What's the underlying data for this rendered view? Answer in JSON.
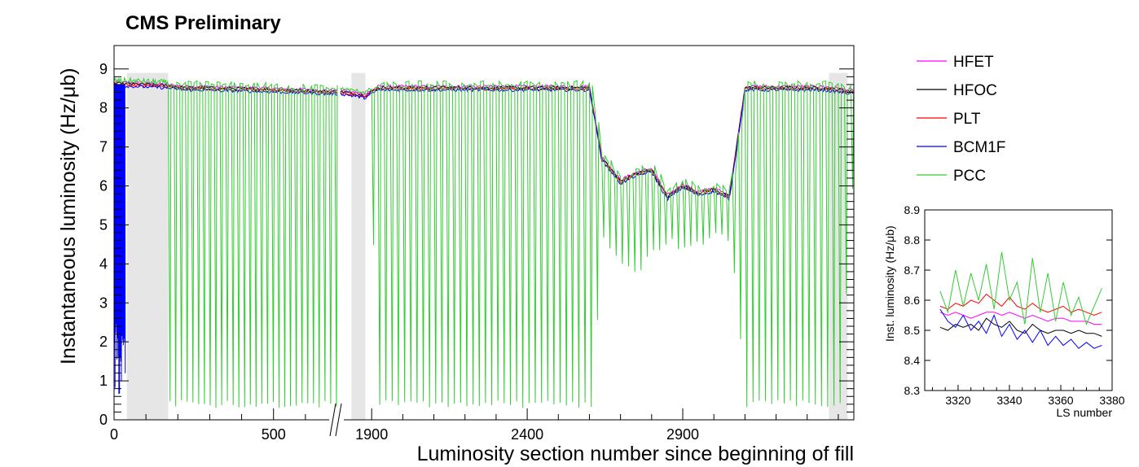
{
  "figure": {
    "header": "CMS Preliminary"
  },
  "chart_data": [
    {
      "type": "line",
      "xlabel": "Luminosity section number since beginning of fill",
      "ylabel": "Instantaneous luminosity (Hz/μb)",
      "ylim": [
        0,
        9.6
      ],
      "axis_break": "broken x-axis between 700 and 1800",
      "x_tick_labels": [
        "0",
        "500",
        "1900",
        "2400",
        "2900"
      ],
      "y_tick_labels": [
        "0",
        "1",
        "2",
        "3",
        "4",
        "5",
        "6",
        "7",
        "8",
        "9"
      ],
      "y_ticks": [
        0,
        1,
        2,
        3,
        4,
        5,
        6,
        7,
        8,
        9
      ],
      "legend_placement": "right",
      "grid": false,
      "shaded_regions_x": [
        [
          40,
          170
        ],
        [
          1835,
          1880
        ],
        [
          3370,
          3430
        ]
      ],
      "series": [
        {
          "name": "HFET",
          "color": "#ff00ff"
        },
        {
          "name": "HFOC",
          "color": "#000000"
        },
        {
          "name": "PLT",
          "color": "#ff0000"
        },
        {
          "name": "BCM1F",
          "color": "#0000ff"
        },
        {
          "name": "PCC",
          "color": "#33cc33"
        }
      ],
      "x": [
        0,
        40,
        100,
        170,
        200,
        220,
        260,
        300,
        340,
        380,
        420,
        460,
        500,
        540,
        580,
        620,
        660,
        700,
        1800,
        1840,
        1880,
        1920,
        2000,
        2100,
        2200,
        2300,
        2400,
        2500,
        2600,
        2640,
        2700,
        2750,
        2800,
        2850,
        2900,
        2950,
        3000,
        3050,
        3100,
        3150,
        3200,
        3250,
        3300,
        3350,
        3400,
        3450
      ],
      "envelope_upper": [
        8.7,
        8.7,
        8.68,
        8.65,
        8.62,
        8.6,
        8.6,
        8.6,
        8.58,
        8.58,
        8.57,
        8.56,
        8.55,
        8.54,
        8.53,
        8.52,
        8.5,
        8.5,
        8.5,
        8.45,
        8.4,
        8.6,
        8.6,
        8.6,
        8.6,
        8.6,
        8.6,
        8.6,
        8.6,
        6.8,
        6.2,
        6.4,
        6.5,
        5.8,
        6.1,
        5.9,
        6.0,
        5.8,
        8.6,
        8.6,
        8.6,
        8.6,
        8.6,
        8.6,
        8.55,
        8.5
      ],
      "envelope_lower": [
        0.5,
        0.3,
        0.3,
        0.3,
        0.3,
        0.3,
        0.3,
        0.3,
        0.3,
        0.3,
        0.3,
        0.3,
        0.3,
        0.3,
        0.3,
        0.3,
        0.3,
        0.3,
        8.3,
        8.3,
        8.3,
        0.3,
        0.3,
        0.3,
        0.3,
        0.3,
        0.3,
        0.3,
        0.3,
        4.6,
        3.9,
        3.7,
        4.2,
        4.5,
        4.3,
        4.4,
        4.6,
        4.5,
        0.3,
        0.3,
        0.3,
        0.3,
        0.3,
        0.3,
        0.3,
        7.3
      ]
    },
    {
      "type": "line",
      "xlabel": "LS number",
      "ylabel": "Inst. luminosity (Hz/μb)",
      "xlim": [
        3307,
        3380
      ],
      "ylim": [
        8.3,
        8.9
      ],
      "x_tick_labels": [
        "3320",
        "3340",
        "3360",
        "3380"
      ],
      "y_tick_labels": [
        "8.3",
        "8.4",
        "8.5",
        "8.6",
        "8.7",
        "8.8",
        "8.9"
      ],
      "x_ticks": [
        3320,
        3340,
        3360,
        3380
      ],
      "y_ticks": [
        8.3,
        8.4,
        8.5,
        8.6,
        8.7,
        8.8,
        8.9
      ],
      "x": [
        3313,
        3316,
        3319,
        3322,
        3325,
        3328,
        3331,
        3334,
        3337,
        3340,
        3343,
        3346,
        3349,
        3352,
        3355,
        3358,
        3361,
        3364,
        3367,
        3370,
        3373,
        3376
      ],
      "series": [
        {
          "name": "HFET",
          "color": "#ff00ff",
          "values": [
            8.56,
            8.55,
            8.56,
            8.55,
            8.54,
            8.55,
            8.56,
            8.56,
            8.55,
            8.56,
            8.55,
            8.54,
            8.55,
            8.54,
            8.53,
            8.54,
            8.54,
            8.53,
            8.53,
            8.53,
            8.52,
            8.52
          ]
        },
        {
          "name": "HFOC",
          "color": "#000000",
          "values": [
            8.51,
            8.5,
            8.52,
            8.51,
            8.52,
            8.5,
            8.54,
            8.52,
            8.51,
            8.53,
            8.5,
            8.49,
            8.52,
            8.5,
            8.49,
            8.5,
            8.5,
            8.49,
            8.5,
            8.49,
            8.49,
            8.48
          ]
        },
        {
          "name": "PLT",
          "color": "#ff0000",
          "values": [
            8.58,
            8.57,
            8.59,
            8.58,
            8.6,
            8.59,
            8.62,
            8.6,
            8.58,
            8.61,
            8.58,
            8.57,
            8.59,
            8.57,
            8.56,
            8.57,
            8.58,
            8.56,
            8.57,
            8.56,
            8.55,
            8.56
          ]
        },
        {
          "name": "BCM1F",
          "color": "#0000ff",
          "values": [
            8.57,
            8.53,
            8.51,
            8.55,
            8.5,
            8.53,
            8.49,
            8.55,
            8.48,
            8.52,
            8.47,
            8.5,
            8.46,
            8.5,
            8.45,
            8.48,
            8.45,
            8.47,
            8.44,
            8.46,
            8.44,
            8.45
          ]
        },
        {
          "name": "PCC",
          "color": "#33cc33",
          "values": [
            8.63,
            8.56,
            8.7,
            8.58,
            8.69,
            8.6,
            8.72,
            8.57,
            8.76,
            8.6,
            8.66,
            8.52,
            8.74,
            8.56,
            8.69,
            8.53,
            8.66,
            8.55,
            8.61,
            8.52,
            8.58,
            8.64
          ]
        }
      ]
    }
  ]
}
